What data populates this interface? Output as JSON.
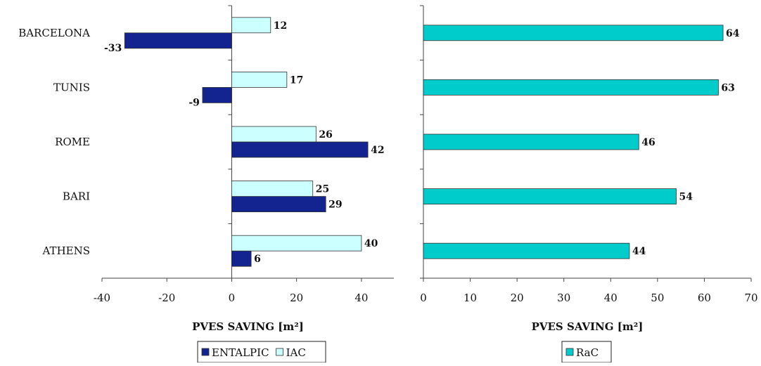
{
  "chart_data": [
    {
      "type": "bar",
      "orientation": "horizontal",
      "categories": [
        "BARCELONA",
        "TUNIS",
        "ROME",
        "BARI",
        "ATHENS"
      ],
      "series": [
        {
          "name": "ENTALPIC",
          "values": [
            -33,
            -9,
            42,
            29,
            6
          ],
          "color": "#13238f"
        },
        {
          "name": "IAC",
          "values": [
            12,
            17,
            26,
            25,
            40
          ],
          "color": "#ccffff"
        }
      ],
      "xlabel": "PVES SAVING [m²]",
      "xlim": [
        -40,
        50
      ],
      "xticks": [
        -40,
        -20,
        0,
        20,
        40
      ],
      "grid": false,
      "legend": "bottom"
    },
    {
      "type": "bar",
      "orientation": "horizontal",
      "categories": [
        "BARCELONA",
        "TUNIS",
        "ROME",
        "BARI",
        "ATHENS"
      ],
      "series": [
        {
          "name": "RaC",
          "values": [
            64,
            63,
            46,
            54,
            44
          ],
          "color": "#00cccc"
        }
      ],
      "xlabel": "PVES SAVING [m²]",
      "xlim": [
        0,
        70
      ],
      "xticks": [
        0,
        10,
        20,
        30,
        40,
        50,
        60,
        70
      ],
      "grid": false,
      "legend": "bottom"
    }
  ]
}
